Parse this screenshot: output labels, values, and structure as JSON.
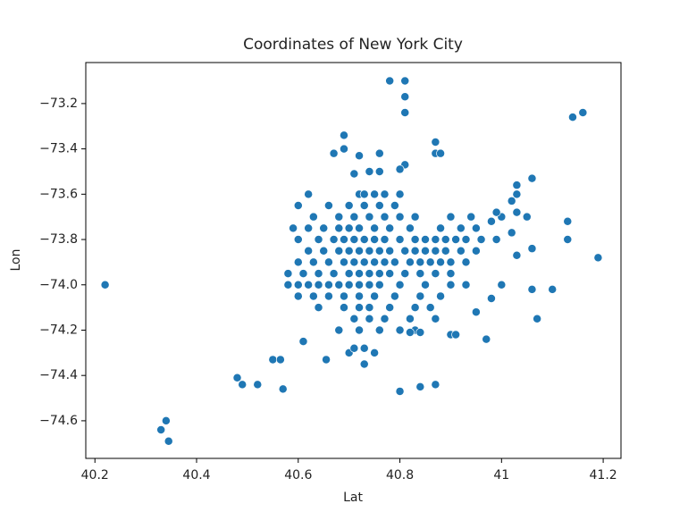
{
  "chart_data": {
    "type": "scatter",
    "title": "Coordinates of New York City",
    "x_label": "Lat",
    "y_label": "Lon",
    "color": "#1f77b4",
    "x": [
      40.62,
      40.72,
      40.73,
      40.75,
      40.77,
      40.8,
      40.6,
      40.66,
      40.7,
      40.73,
      40.76,
      40.79,
      40.63,
      40.68,
      40.71,
      40.74,
      40.77,
      40.8,
      40.83,
      40.9,
      40.94,
      40.59,
      40.62,
      40.65,
      40.68,
      40.7,
      40.72,
      40.75,
      40.78,
      40.82,
      40.88,
      40.92,
      40.95,
      40.6,
      40.64,
      40.67,
      40.69,
      40.71,
      40.73,
      40.75,
      40.77,
      40.8,
      40.83,
      40.85,
      40.87,
      40.89,
      40.91,
      40.93,
      40.96,
      40.62,
      40.65,
      40.68,
      40.7,
      40.72,
      40.74,
      40.76,
      40.78,
      40.81,
      40.83,
      40.85,
      40.87,
      40.89,
      40.92,
      40.95,
      40.6,
      40.63,
      40.66,
      40.69,
      40.71,
      40.73,
      40.75,
      40.77,
      40.79,
      40.82,
      40.84,
      40.86,
      40.88,
      40.9,
      40.93,
      40.58,
      40.61,
      40.64,
      40.67,
      40.7,
      40.72,
      40.74,
      40.76,
      40.78,
      40.81,
      40.84,
      40.87,
      40.9,
      40.58,
      40.6,
      40.62,
      40.64,
      40.66,
      40.68,
      40.7,
      40.72,
      40.74,
      40.76,
      40.8,
      40.85,
      40.9,
      40.6,
      40.63,
      40.66,
      40.69,
      40.72,
      40.75,
      40.79,
      40.84,
      40.88,
      40.64,
      40.69,
      40.72,
      40.74,
      40.78,
      40.83,
      40.86,
      40.71,
      40.74,
      40.77,
      40.82,
      40.87,
      40.68,
      40.72,
      40.76,
      40.8,
      40.83,
      40.22,
      40.33,
      40.34,
      40.345,
      40.48,
      40.49,
      40.52,
      40.55,
      40.565,
      40.57,
      40.61,
      40.655,
      40.7,
      40.71,
      40.73,
      40.73,
      40.75,
      40.8,
      40.84,
      40.87,
      40.78,
      40.81,
      40.81,
      40.81,
      40.69,
      40.69,
      40.67,
      40.72,
      40.76,
      40.87,
      40.87,
      40.88,
      40.81,
      40.8,
      40.74,
      40.76,
      40.71,
      41.14,
      41.16,
      41.19,
      41.13,
      41.13,
      41.1,
      41.07,
      41.06,
      41.05,
      41.06,
      41.06,
      41.03,
      41.03,
      41.02,
      41.03,
      41.0,
      41.02,
      41.03,
      41.0,
      40.99,
      40.98,
      40.99,
      40.98,
      40.97,
      40.95,
      40.9,
      40.91,
      40.93,
      40.82,
      40.84
    ],
    "values": [
      -73.6,
      -73.6,
      -73.6,
      -73.6,
      -73.6,
      -73.6,
      -73.65,
      -73.65,
      -73.65,
      -73.65,
      -73.65,
      -73.65,
      -73.7,
      -73.7,
      -73.7,
      -73.7,
      -73.7,
      -73.7,
      -73.7,
      -73.7,
      -73.7,
      -73.75,
      -73.75,
      -73.75,
      -73.75,
      -73.75,
      -73.75,
      -73.75,
      -73.75,
      -73.75,
      -73.75,
      -73.75,
      -73.75,
      -73.8,
      -73.8,
      -73.8,
      -73.8,
      -73.8,
      -73.8,
      -73.8,
      -73.8,
      -73.8,
      -73.8,
      -73.8,
      -73.8,
      -73.8,
      -73.8,
      -73.8,
      -73.8,
      -73.85,
      -73.85,
      -73.85,
      -73.85,
      -73.85,
      -73.85,
      -73.85,
      -73.85,
      -73.85,
      -73.85,
      -73.85,
      -73.85,
      -73.85,
      -73.85,
      -73.85,
      -73.9,
      -73.9,
      -73.9,
      -73.9,
      -73.9,
      -73.9,
      -73.9,
      -73.9,
      -73.9,
      -73.9,
      -73.9,
      -73.9,
      -73.9,
      -73.9,
      -73.9,
      -73.95,
      -73.95,
      -73.95,
      -73.95,
      -73.95,
      -73.95,
      -73.95,
      -73.95,
      -73.95,
      -73.95,
      -73.95,
      -73.95,
      -73.95,
      -74.0,
      -74.0,
      -74.0,
      -74.0,
      -74.0,
      -74.0,
      -74.0,
      -74.0,
      -74.0,
      -74.0,
      -74.0,
      -74.0,
      -74.0,
      -74.05,
      -74.05,
      -74.05,
      -74.05,
      -74.05,
      -74.05,
      -74.05,
      -74.05,
      -74.05,
      -74.1,
      -74.1,
      -74.1,
      -74.1,
      -74.1,
      -74.1,
      -74.1,
      -74.15,
      -74.15,
      -74.15,
      -74.15,
      -74.15,
      -74.2,
      -74.2,
      -74.2,
      -74.2,
      -74.2,
      -74.0,
      -74.64,
      -74.6,
      -74.69,
      -74.41,
      -74.44,
      -74.44,
      -74.33,
      -74.33,
      -74.46,
      -74.25,
      -74.33,
      -74.3,
      -74.28,
      -74.28,
      -74.35,
      -74.3,
      -74.47,
      -74.45,
      -74.44,
      -73.1,
      -73.1,
      -73.17,
      -73.24,
      -73.34,
      -73.4,
      -73.42,
      -73.43,
      -73.42,
      -73.37,
      -73.42,
      -73.42,
      -73.47,
      -73.49,
      -73.5,
      -73.5,
      -73.51,
      -73.26,
      -73.24,
      -73.88,
      -73.72,
      -73.8,
      -74.02,
      -74.15,
      -73.53,
      -73.7,
      -73.84,
      -74.02,
      -73.56,
      -73.6,
      -73.63,
      -73.68,
      -73.7,
      -73.77,
      -73.87,
      -74.0,
      -73.68,
      -73.72,
      -73.8,
      -74.06,
      -74.24,
      -74.12,
      -74.22,
      -74.22,
      -74.0,
      -74.21,
      -74.21
    ],
    "xlim": [
      40.182,
      41.235
    ],
    "ylim": [
      -74.766,
      -73.019
    ],
    "xticks": [
      40.2,
      40.4,
      40.6,
      40.8,
      41.0,
      41.2
    ],
    "yticks": [
      {
        "value": -74.6,
        "label": "−74.6"
      },
      {
        "value": -74.4,
        "label": "−74.4"
      },
      {
        "value": -74.2,
        "label": "−74.2"
      },
      {
        "value": -74.0,
        "label": "−74.0"
      },
      {
        "value": -73.8,
        "label": "−73.8"
      },
      {
        "value": -73.6,
        "label": "−73.6"
      },
      {
        "value": -73.4,
        "label": "−73.4"
      },
      {
        "value": -73.2,
        "label": "−73.2"
      }
    ]
  }
}
